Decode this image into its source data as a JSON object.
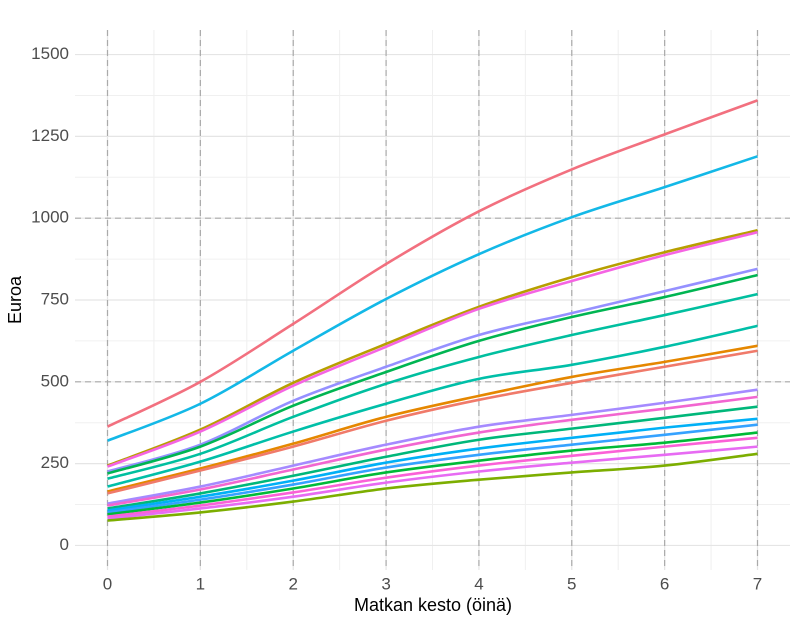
{
  "chart_data": {
    "type": "line",
    "x_label": "Matkan kesto (öinä)",
    "y_label": "Euroa",
    "x": [
      0,
      1,
      2,
      3,
      4,
      5,
      6,
      7
    ],
    "xlim": [
      -0.35,
      7.35
    ],
    "xticks": [
      0,
      1,
      2,
      3,
      4,
      5,
      6,
      7
    ],
    "ylim": [
      -75,
      1575
    ],
    "yticks": [
      0,
      250,
      500,
      750,
      1000,
      1250,
      1500
    ],
    "grid": true,
    "hlines": [
      500,
      1000
    ],
    "vlines": [
      0,
      1,
      2,
      3,
      4,
      5,
      6,
      7
    ],
    "series": [
      {
        "color": "#f2707f",
        "values": [
          363,
          500,
          677,
          860,
          1021,
          1149,
          1256,
          1360
        ]
      },
      {
        "color": "#13b8e7",
        "values": [
          320,
          433,
          595,
          753,
          890,
          1003,
          1095,
          1189
        ]
      },
      {
        "color": "#b79f00",
        "values": [
          244,
          354,
          497,
          616,
          729,
          820,
          896,
          963
        ]
      },
      {
        "color": "#f564e3",
        "values": [
          241,
          348,
          488,
          607,
          723,
          808,
          887,
          957
        ]
      },
      {
        "color": "#9590ff",
        "values": [
          226,
          308,
          442,
          546,
          643,
          710,
          777,
          845
        ]
      },
      {
        "color": "#00b552",
        "values": [
          220,
          302,
          427,
          530,
          625,
          698,
          759,
          826
        ]
      },
      {
        "color": "#00bf9f",
        "values": [
          204,
          280,
          393,
          494,
          576,
          643,
          704,
          768
        ]
      },
      {
        "color": "#00bfa8",
        "values": [
          180,
          256,
          348,
          433,
          509,
          552,
          607,
          671
        ]
      },
      {
        "color": "#e58700",
        "values": [
          165,
          235,
          311,
          393,
          457,
          515,
          561,
          610
        ]
      },
      {
        "color": "#f07a6a",
        "values": [
          159,
          229,
          302,
          381,
          445,
          497,
          546,
          595
        ]
      },
      {
        "color": "#a58aff",
        "values": [
          128,
          180,
          244,
          308,
          363,
          399,
          436,
          476
        ]
      },
      {
        "color": "#f266d0",
        "values": [
          122,
          171,
          232,
          293,
          345,
          384,
          418,
          454
        ]
      },
      {
        "color": "#00b77a",
        "values": [
          113,
          159,
          213,
          271,
          323,
          357,
          390,
          424
        ]
      },
      {
        "color": "#00b0f6",
        "values": [
          107,
          149,
          198,
          253,
          296,
          329,
          360,
          387
        ]
      },
      {
        "color": "#35a2ff",
        "values": [
          101,
          140,
          186,
          238,
          277,
          308,
          338,
          369
        ]
      },
      {
        "color": "#00ba38",
        "values": [
          95,
          131,
          174,
          223,
          259,
          290,
          314,
          345
        ]
      },
      {
        "color": "#fb61d7",
        "values": [
          88,
          122,
          162,
          207,
          244,
          274,
          302,
          329
        ]
      },
      {
        "color": "#e76bf3",
        "values": [
          82,
          113,
          149,
          192,
          226,
          253,
          277,
          302
        ]
      },
      {
        "color": "#7cae00",
        "values": [
          76,
          101,
          134,
          174,
          201,
          223,
          244,
          280
        ]
      }
    ]
  }
}
